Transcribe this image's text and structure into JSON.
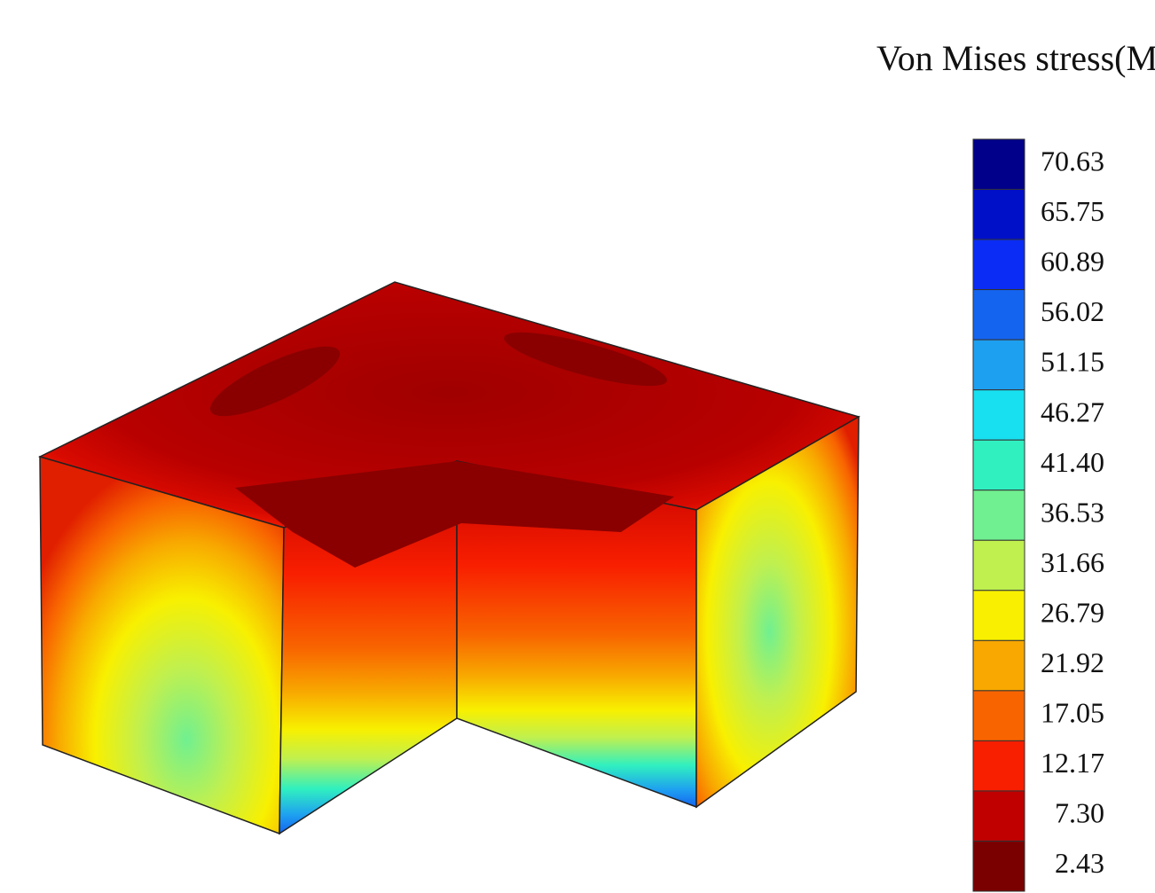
{
  "colorbar": {
    "title": "Von Mises stress(Mpa)",
    "levels": [
      {
        "label": "70.63",
        "color": "#00008a"
      },
      {
        "label": "65.75",
        "color": "#0010c8"
      },
      {
        "label": "60.89",
        "color": "#0a2cf5"
      },
      {
        "label": "56.02",
        "color": "#1464f0"
      },
      {
        "label": "51.15",
        "color": "#1ea0f0"
      },
      {
        "label": "46.27",
        "color": "#18e0f0"
      },
      {
        "label": "41.40",
        "color": "#30f0c0"
      },
      {
        "label": "36.53",
        "color": "#70f090"
      },
      {
        "label": "31.66",
        "color": "#bff050"
      },
      {
        "label": "26.79",
        "color": "#f8f000"
      },
      {
        "label": "21.92",
        "color": "#f8a800"
      },
      {
        "label": "17.05",
        "color": "#f86400"
      },
      {
        "label": "12.17",
        "color": "#f81e00"
      },
      {
        "label": "7.30",
        "color": "#c00000"
      },
      {
        "label": "2.43",
        "color": "#7a0000"
      }
    ]
  }
}
